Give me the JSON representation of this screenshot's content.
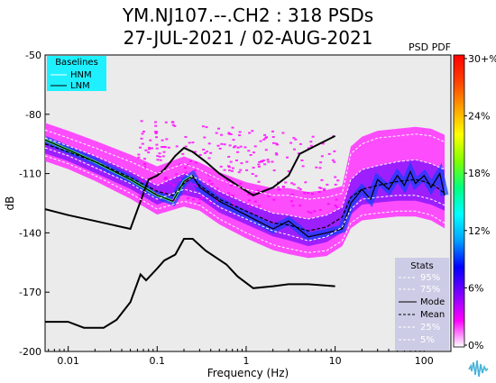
{
  "header": {
    "title_line1": "YM.NJ107.--.CH2 : 318 PSDs",
    "title_line2": "27-JUL-2021 / 02-AUG-2021",
    "colorbar_title": "PSD PDF"
  },
  "colors": {
    "plot_bg": "#ebebeb",
    "baseline_box": "#1ff0ff",
    "stats_box": "#cccce6",
    "colormap": [
      "#ffffff",
      "#ff00ff",
      "#7f00ff",
      "#0000ff",
      "#00a0ff",
      "#00ffff",
      "#00ff80",
      "#7fff00",
      "#ffff00",
      "#ffa000",
      "#ff4000",
      "#ff0000"
    ]
  },
  "chart_data": {
    "type": "heatmap",
    "xlabel": "Frequency (Hz)",
    "ylabel": "dB",
    "xscale": "log",
    "xlim": [
      0.0055,
      200
    ],
    "ylim": [
      -200,
      -50
    ],
    "x_ticks": [
      "0.01",
      "0.1",
      "1",
      "10",
      "100"
    ],
    "y_ticks": [
      "-50",
      "-80",
      "-110",
      "-140",
      "-170",
      "-200"
    ],
    "colorbar": {
      "ticks": [
        "30+%",
        "24%",
        "18%",
        "12%",
        "6%",
        "0%"
      ],
      "range_percent": [
        0,
        30
      ]
    },
    "legend_baselines": {
      "title": "Baselines",
      "entries": [
        "HNM",
        "LNM"
      ],
      "placement": "top-left"
    },
    "legend_stats": {
      "title": "Stats",
      "entries": [
        "95%",
        "75%",
        "Mode",
        "Mean",
        "25%",
        "5%"
      ],
      "placement": "bottom-right"
    },
    "series": [
      {
        "name": "HNM",
        "x": [
          0.0055,
          0.01,
          0.02,
          0.05,
          0.08,
          0.1,
          0.12,
          0.16,
          0.2,
          0.25,
          0.35,
          0.5,
          0.8,
          1.2,
          2,
          3,
          4,
          6,
          10
        ],
        "y": [
          -128,
          -131,
          -134,
          -138,
          -113,
          -111,
          -108,
          -101,
          -97,
          -99,
          -104,
          -110,
          -116,
          -121,
          -117,
          -111,
          -100,
          -96,
          -91
        ]
      },
      {
        "name": "LNM",
        "x": [
          0.0055,
          0.01,
          0.015,
          0.025,
          0.035,
          0.05,
          0.065,
          0.075,
          0.1,
          0.12,
          0.16,
          0.2,
          0.25,
          0.35,
          0.6,
          0.8,
          1.2,
          2,
          3,
          5,
          10
        ],
        "y": [
          -185,
          -185,
          -188,
          -188,
          -184,
          -175,
          -161,
          -164,
          -158,
          -154,
          -151,
          -143,
          -143,
          -149,
          -156,
          -162,
          -168,
          -167,
          -166,
          -166,
          -167
        ]
      },
      {
        "name": "Mode",
        "x": [
          0.0055,
          0.01,
          0.02,
          0.05,
          0.1,
          0.15,
          0.2,
          0.25,
          0.3,
          0.5,
          1,
          2,
          3,
          5,
          8,
          12,
          15,
          20,
          25,
          30,
          40,
          50,
          60,
          70,
          80,
          100,
          120,
          150,
          170
        ],
        "y": [
          -93,
          -98,
          -104,
          -113,
          -121,
          -124,
          -114,
          -111,
          -117,
          -124,
          -131,
          -138,
          -134,
          -142,
          -140,
          -138,
          -125,
          -118,
          -123,
          -113,
          -118,
          -111,
          -116,
          -109,
          -115,
          -111,
          -117,
          -110,
          -121
        ]
      },
      {
        "name": "Mean",
        "x": [
          0.0055,
          0.01,
          0.02,
          0.05,
          0.1,
          0.15,
          0.2,
          0.25,
          0.3,
          0.5,
          1,
          2,
          3,
          5,
          8,
          12,
          15,
          20,
          30,
          50,
          80,
          100,
          130,
          170
        ],
        "y": [
          -95,
          -99,
          -104,
          -112,
          -119,
          -121,
          -115,
          -112,
          -116,
          -123,
          -129,
          -135,
          -136,
          -139,
          -137,
          -132,
          -122,
          -118,
          -116,
          -114,
          -113,
          -114,
          -116,
          -120
        ]
      },
      {
        "name": "95%",
        "x": [
          0.0055,
          0.01,
          0.02,
          0.05,
          0.1,
          0.2,
          0.3,
          0.5,
          1,
          2,
          3,
          5,
          8,
          12,
          15,
          20,
          30,
          50,
          80,
          120,
          170
        ],
        "y": [
          -88,
          -92,
          -97,
          -104,
          -110,
          -105,
          -108,
          -113,
          -118,
          -121,
          -121,
          -123,
          -122,
          -120,
          -100,
          -95,
          -92,
          -91,
          -90,
          -91,
          -94
        ]
      },
      {
        "name": "75%",
        "x": [
          0.0055,
          0.01,
          0.02,
          0.05,
          0.1,
          0.2,
          0.3,
          0.5,
          1,
          2,
          3,
          5,
          8,
          12,
          15,
          20,
          30,
          50,
          80,
          120,
          170
        ],
        "y": [
          -92,
          -96,
          -101,
          -109,
          -116,
          -110,
          -113,
          -119,
          -125,
          -130,
          -131,
          -133,
          -131,
          -127,
          -113,
          -108,
          -106,
          -104,
          -103,
          -105,
          -108
        ]
      },
      {
        "name": "25%",
        "x": [
          0.0055,
          0.01,
          0.02,
          0.05,
          0.1,
          0.2,
          0.3,
          0.5,
          1,
          2,
          3,
          5,
          8,
          12,
          15,
          20,
          30,
          50,
          80,
          120,
          170
        ],
        "y": [
          -97,
          -101,
          -107,
          -115,
          -123,
          -118,
          -120,
          -127,
          -133,
          -139,
          -141,
          -144,
          -142,
          -137,
          -128,
          -123,
          -122,
          -121,
          -121,
          -123,
          -126
        ]
      },
      {
        "name": "5%",
        "x": [
          0.0055,
          0.01,
          0.02,
          0.05,
          0.1,
          0.2,
          0.3,
          0.5,
          1,
          2,
          3,
          5,
          8,
          12,
          15,
          20,
          30,
          50,
          80,
          120,
          170
        ],
        "y": [
          -101,
          -105,
          -111,
          -120,
          -128,
          -124,
          -126,
          -133,
          -140,
          -146,
          -148,
          -150,
          -149,
          -144,
          -135,
          -131,
          -130,
          -129,
          -129,
          -131,
          -135
        ]
      }
    ]
  }
}
